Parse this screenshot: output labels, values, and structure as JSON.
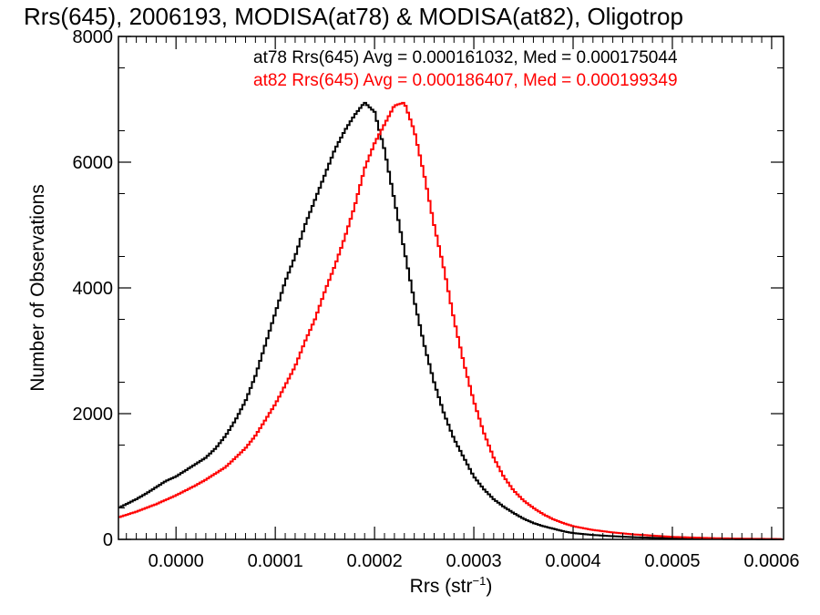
{
  "chart_data": {
    "type": "line",
    "title": "Rrs(645), 2006193, MODISA(at78) & MODISA(at82), Oligotrop",
    "xlabel": "Rrs (str",
    "xlabel_sup": "−1",
    "xlabel_end": ")",
    "ylabel": "Number of Observations",
    "xlim": [
      -5.8e-05,
      0.000612
    ],
    "ylim": [
      0,
      8000
    ],
    "x_ticks": [
      0.0,
      0.0001,
      0.0002,
      0.0003,
      0.0004,
      0.0005,
      0.0006
    ],
    "x_tick_labels": [
      "0.0000",
      "0.0001",
      "0.0002",
      "0.0003",
      "0.0004",
      "0.0005",
      "0.0006"
    ],
    "y_ticks": [
      0,
      2000,
      4000,
      6000,
      8000
    ],
    "y_tick_labels": [
      "0",
      "2000",
      "4000",
      "6000",
      "8000"
    ],
    "grid": false,
    "stats_text": [
      {
        "text": "at78 Rrs(645) Avg = 0.000161032, Med = 0.000175044",
        "color": "#000000"
      },
      {
        "text": "at82 Rrs(645) Avg = 0.000186407, Med = 0.000199349",
        "color": "#ff0000"
      }
    ],
    "series": [
      {
        "color": "#000000",
        "x": [
          -5.8e-05,
          -5e-05,
          -4e-05,
          -3e-05,
          -2e-05,
          -1e-05,
          0.0,
          1e-05,
          2e-05,
          3e-05,
          4e-05,
          5e-05,
          6e-05,
          7e-05,
          8e-05,
          9e-05,
          0.0001,
          0.00011,
          0.00012,
          0.00013,
          0.00014,
          0.00015,
          0.00016,
          0.00017,
          0.00018,
          0.00019,
          0.0002,
          0.00021,
          0.00022,
          0.00023,
          0.00024,
          0.00025,
          0.00026,
          0.00027,
          0.00028,
          0.00029,
          0.0003,
          0.00031,
          0.00032,
          0.00033,
          0.00034,
          0.00035,
          0.00036,
          0.00037,
          0.00038,
          0.00039,
          0.0004,
          0.00042,
          0.00044,
          0.00046,
          0.00048,
          0.0005,
          0.00052,
          0.00054,
          0.00056,
          0.00058,
          0.0006,
          0.00061
        ],
        "y": [
          500,
          560,
          640,
          730,
          830,
          930,
          1000,
          1100,
          1200,
          1300,
          1450,
          1650,
          1900,
          2200,
          2600,
          3100,
          3600,
          4100,
          4500,
          5000,
          5400,
          5800,
          6200,
          6500,
          6750,
          6950,
          6800,
          6200,
          5400,
          4600,
          3800,
          3100,
          2500,
          2000,
          1600,
          1300,
          1000,
          800,
          640,
          520,
          420,
          330,
          260,
          210,
          170,
          130,
          100,
          70,
          50,
          35,
          25,
          18,
          12,
          8,
          5,
          3,
          2,
          1
        ]
      },
      {
        "color": "#ff0000",
        "x": [
          -5.8e-05,
          -5e-05,
          -4e-05,
          -3e-05,
          -2e-05,
          -1e-05,
          0.0,
          1e-05,
          2e-05,
          3e-05,
          4e-05,
          5e-05,
          6e-05,
          7e-05,
          8e-05,
          9e-05,
          0.0001,
          0.00011,
          0.00012,
          0.00013,
          0.00014,
          0.00015,
          0.00016,
          0.00017,
          0.00018,
          0.00019,
          0.0002,
          0.00021,
          0.00022,
          0.00023,
          0.00024,
          0.00025,
          0.00026,
          0.00027,
          0.00028,
          0.00029,
          0.0003,
          0.00031,
          0.00032,
          0.00033,
          0.00034,
          0.00035,
          0.00036,
          0.00037,
          0.00038,
          0.00039,
          0.0004,
          0.00042,
          0.00044,
          0.00046,
          0.00048,
          0.0005,
          0.00052,
          0.00054,
          0.00056,
          0.00058,
          0.0006,
          0.00061
        ],
        "y": [
          350,
          390,
          440,
          500,
          560,
          630,
          700,
          780,
          860,
          950,
          1050,
          1150,
          1300,
          1450,
          1650,
          1900,
          2150,
          2450,
          2750,
          3150,
          3500,
          3950,
          4350,
          4800,
          5300,
          5900,
          6300,
          6600,
          6900,
          6950,
          6500,
          5800,
          5000,
          4300,
          3500,
          2800,
          2200,
          1700,
          1300,
          1000,
          780,
          620,
          500,
          400,
          320,
          260,
          210,
          150,
          110,
          80,
          60,
          40,
          30,
          20,
          14,
          10,
          7,
          5
        ]
      }
    ]
  }
}
